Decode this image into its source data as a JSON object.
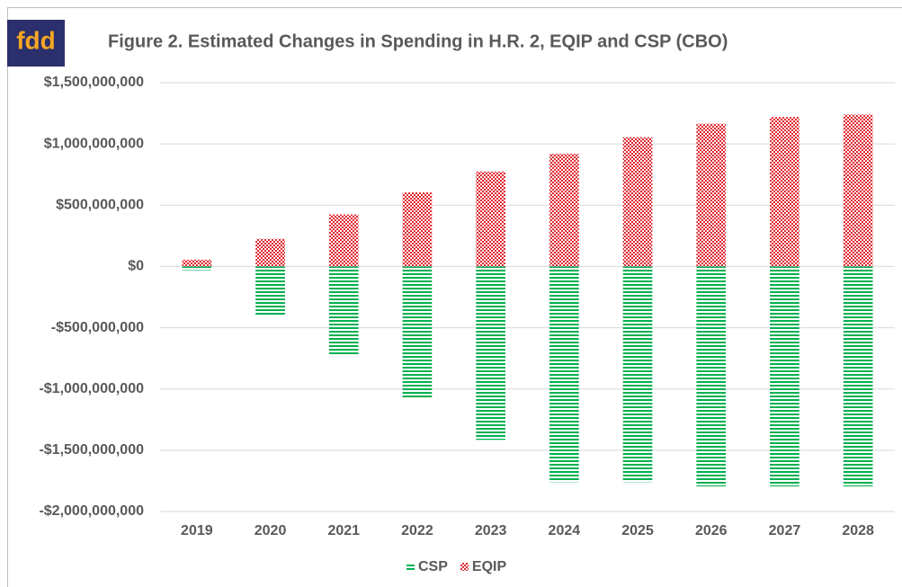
{
  "chart_data": {
    "type": "bar",
    "stacked": true,
    "logo": "fdd",
    "title": "Figure 2. Estimated Changes in Spending in H.R. 2, EQIP and CSP (CBO)",
    "categories": [
      "2019",
      "2020",
      "2021",
      "2022",
      "2023",
      "2024",
      "2025",
      "2026",
      "2027",
      "2028"
    ],
    "series": [
      {
        "name": "CSP",
        "color": "#00b050",
        "values": [
          -30000000,
          -400000000,
          -720000000,
          -1070000000,
          -1415000000,
          -1760000000,
          -1760000000,
          -1795000000,
          -1795000000,
          -1795000000
        ]
      },
      {
        "name": "EQIP",
        "color": "#e0262e",
        "values": [
          55000000,
          225000000,
          425000000,
          605000000,
          775000000,
          920000000,
          1055000000,
          1165000000,
          1220000000,
          1240000000
        ]
      }
    ],
    "ylim": [
      -2000000000,
      1500000000
    ],
    "yticks": [
      {
        "value": -2000000000,
        "label": "-$2,000,000,000"
      },
      {
        "value": -1500000000,
        "label": "-$1,500,000,000"
      },
      {
        "value": -1000000000,
        "label": "-$1,000,000,000"
      },
      {
        "value": -500000000,
        "label": "-$500,000,000"
      },
      {
        "value": 0,
        "label": "$0"
      },
      {
        "value": 500000000,
        "label": "$500,000,000"
      },
      {
        "value": 1000000000,
        "label": "$1,000,000,000"
      },
      {
        "value": 1500000000,
        "label": "$1,500,000,000"
      }
    ],
    "grid": true,
    "legend": "bottom"
  }
}
